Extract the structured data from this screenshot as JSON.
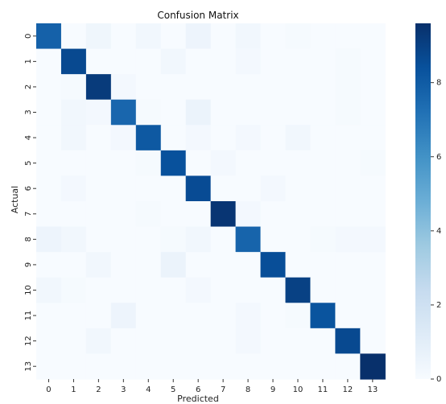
{
  "chart_data": {
    "type": "heatmap",
    "title": "Confusion Matrix",
    "xlabel": "Predicted",
    "ylabel": "Actual",
    "x_categories": [
      "0",
      "1",
      "2",
      "3",
      "4",
      "5",
      "6",
      "7",
      "8",
      "9",
      "10",
      "11",
      "12",
      "13"
    ],
    "y_categories": [
      "0",
      "1",
      "2",
      "3",
      "4",
      "5",
      "6",
      "7",
      "8",
      "9",
      "10",
      "11",
      "12",
      "13"
    ],
    "colormap": "Blues",
    "value_range": [
      0,
      9.6
    ],
    "colorbar_ticks": [
      "0",
      "2",
      "4",
      "6",
      "8"
    ],
    "colorbar_tick_values": [
      0,
      2,
      4,
      6,
      8
    ],
    "values": [
      [
        7.8,
        0,
        0.4,
        0,
        0.3,
        0,
        0.5,
        0,
        0.3,
        0,
        0.1,
        0,
        0,
        0
      ],
      [
        0,
        8.7,
        0,
        0,
        0,
        0.3,
        0,
        0,
        0.2,
        0,
        0,
        0,
        0.1,
        0
      ],
      [
        0,
        0.1,
        9.2,
        0.2,
        0,
        0,
        0,
        0,
        0,
        0,
        0,
        0,
        0.1,
        0
      ],
      [
        0,
        0.3,
        0.2,
        7.6,
        0.1,
        0,
        0.6,
        0,
        0,
        0,
        0,
        0,
        0.1,
        0
      ],
      [
        0,
        0.3,
        0,
        0.2,
        8.1,
        0,
        0.2,
        0,
        0.2,
        0,
        0.3,
        0,
        0,
        0
      ],
      [
        0,
        0,
        0,
        0,
        0.1,
        8.4,
        0,
        0.2,
        0,
        0,
        0,
        0,
        0,
        0.1
      ],
      [
        0,
        0.2,
        0,
        0,
        0,
        0,
        8.6,
        0,
        0,
        0.2,
        0,
        0,
        0,
        0
      ],
      [
        0,
        0,
        0,
        0,
        0.1,
        0,
        0,
        9.4,
        0.2,
        0,
        0,
        0,
        0,
        0
      ],
      [
        0.5,
        0.3,
        0,
        0,
        0,
        0.1,
        0.3,
        0,
        7.7,
        0,
        0,
        0.1,
        0.2,
        0.2
      ],
      [
        0,
        0,
        0.3,
        0,
        0,
        0.6,
        0,
        0,
        0,
        8.5,
        0,
        0,
        0,
        0
      ],
      [
        0.3,
        0.1,
        0,
        0,
        0,
        0,
        0.2,
        0,
        0,
        0,
        9.0,
        0,
        0,
        0
      ],
      [
        0,
        0,
        0,
        0.5,
        0,
        0,
        0,
        0,
        0.2,
        0,
        0.1,
        8.3,
        0,
        0
      ],
      [
        0,
        0,
        0.3,
        0,
        0,
        0,
        0,
        0,
        0.2,
        0,
        0,
        0,
        8.7,
        0
      ],
      [
        0,
        0,
        0,
        0,
        0,
        0,
        0,
        0,
        0,
        0,
        0,
        0,
        0,
        9.6
      ]
    ]
  }
}
